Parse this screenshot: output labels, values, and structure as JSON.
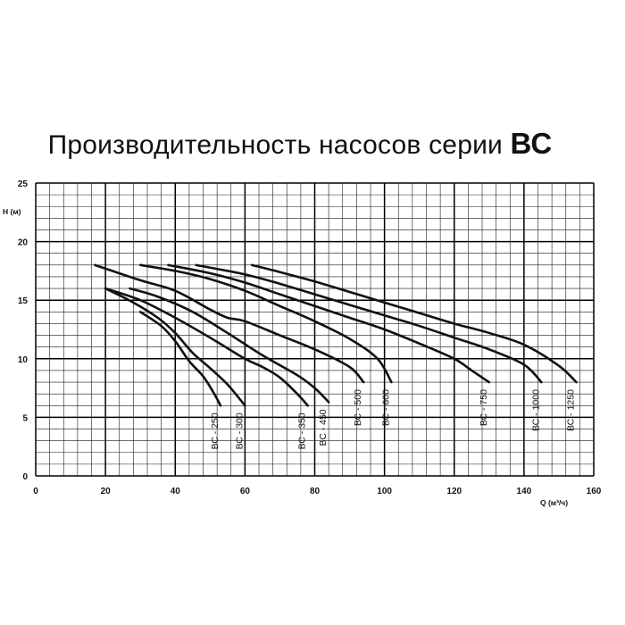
{
  "title": {
    "main": "Производительность насосов серии",
    "bold": "ВС"
  },
  "chart_data": {
    "type": "line",
    "title": "Производительность насосов серии ВС",
    "xlabel": "Q (м³/ч)",
    "ylabel": "H (м)",
    "xlim": [
      0,
      160
    ],
    "ylim": [
      0,
      25
    ],
    "x_ticks": [
      "0",
      "20",
      "40",
      "60",
      "80",
      "100",
      "120",
      "140",
      "160"
    ],
    "y_ticks": [
      "0",
      "5",
      "10",
      "15",
      "20",
      "25"
    ],
    "grid": true,
    "series": [
      {
        "name": "ВС - 250",
        "x": [
          30,
          36,
          40,
          44,
          48,
          51,
          53
        ],
        "y": [
          14,
          12.8,
          11.5,
          9.8,
          8.5,
          7.1,
          6
        ]
      },
      {
        "name": "ВС - 300",
        "x": [
          20,
          28,
          35,
          40,
          45,
          50,
          55,
          60
        ],
        "y": [
          16,
          14.8,
          13.5,
          12.2,
          10.5,
          9.2,
          7.8,
          6
        ]
      },
      {
        "name": "ВС - 350",
        "x": [
          20,
          30,
          40,
          50,
          60,
          65,
          70,
          75,
          78
        ],
        "y": [
          16,
          15,
          13.5,
          11.8,
          10,
          9.3,
          8.4,
          7,
          6
        ]
      },
      {
        "name": "ВС - 450",
        "x": [
          27,
          35,
          45,
          55,
          65,
          75,
          80,
          84
        ],
        "y": [
          16,
          15.3,
          14,
          12.2,
          10.3,
          8.6,
          7.5,
          6.3
        ]
      },
      {
        "name": "ВС - 500",
        "x": [
          17,
          30,
          40,
          50,
          55,
          60,
          70,
          80,
          90,
          94
        ],
        "y": [
          18,
          16.7,
          15.8,
          14.2,
          13.5,
          13.2,
          12,
          10.8,
          9.3,
          8
        ]
      },
      {
        "name": "ВС - 600",
        "x": [
          30,
          40,
          50,
          60,
          70,
          80,
          90,
          98,
          102
        ],
        "y": [
          18,
          17.5,
          16.8,
          15.8,
          14.5,
          13.2,
          11.7,
          10,
          8
        ]
      },
      {
        "name": "ВС - 750",
        "x": [
          38,
          50,
          60,
          70,
          80,
          90,
          100,
          110,
          120,
          125,
          130
        ],
        "y": [
          18,
          17.3,
          16.5,
          15.5,
          14.5,
          13.5,
          12.5,
          11.3,
          10,
          9,
          8
        ]
      },
      {
        "name": "ВС - 1000",
        "x": [
          46,
          60,
          70,
          80,
          90,
          100,
          110,
          120,
          130,
          140,
          145
        ],
        "y": [
          18,
          17.2,
          16.4,
          15.5,
          14.6,
          13.7,
          12.8,
          11.8,
          10.8,
          9.5,
          8
        ]
      },
      {
        "name": "ВС - 1250",
        "x": [
          62,
          70,
          80,
          90,
          100,
          110,
          120,
          130,
          140,
          150,
          155
        ],
        "y": [
          18,
          17.4,
          16.6,
          15.7,
          14.8,
          13.9,
          13,
          12.2,
          11.2,
          9.4,
          8
        ]
      }
    ]
  }
}
